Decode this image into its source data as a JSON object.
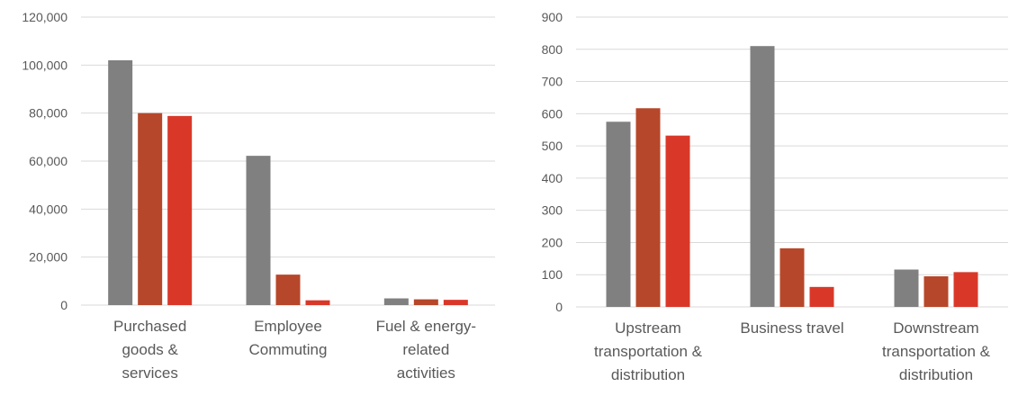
{
  "chart_data": [
    {
      "type": "bar",
      "title": "",
      "xlabel": "",
      "ylabel": "",
      "categories": [
        [
          "Purchased",
          "goods &",
          "services"
        ],
        [
          "Employee",
          "Commuting"
        ],
        [
          "Fuel & energy-",
          "related",
          "activities"
        ]
      ],
      "series": [
        {
          "color": "#808080",
          "values": [
            102000,
            62200,
            2800
          ]
        },
        {
          "color": "#b7472a",
          "values": [
            80000,
            12700,
            2400
          ]
        },
        {
          "color": "#d93829",
          "values": [
            78800,
            2000,
            2200
          ]
        }
      ],
      "ylim": [
        0,
        120000
      ],
      "yticks": [
        0,
        20000,
        40000,
        60000,
        80000,
        100000,
        120000
      ],
      "ytick_labels": [
        "0",
        "20,000",
        "40,000",
        "60,000",
        "80,000",
        "100,000",
        "120,000"
      ],
      "grid": true,
      "legend": "none"
    },
    {
      "type": "bar",
      "title": "",
      "xlabel": "",
      "ylabel": "",
      "categories": [
        [
          "Upstream",
          "transportation &",
          "distribution"
        ],
        [
          "Business travel"
        ],
        [
          "Downstream",
          "transportation &",
          "distribution"
        ]
      ],
      "series": [
        {
          "color": "#808080",
          "values": [
            575,
            810,
            116
          ]
        },
        {
          "color": "#b7472a",
          "values": [
            617,
            182,
            95
          ]
        },
        {
          "color": "#d93829",
          "values": [
            532,
            62,
            108
          ]
        }
      ],
      "ylim": [
        0,
        900
      ],
      "yticks": [
        0,
        100,
        200,
        300,
        400,
        500,
        600,
        700,
        800,
        900
      ],
      "ytick_labels": [
        "0",
        "100",
        "200",
        "300",
        "400",
        "500",
        "600",
        "700",
        "800",
        "900"
      ],
      "grid": true,
      "legend": "none"
    }
  ]
}
